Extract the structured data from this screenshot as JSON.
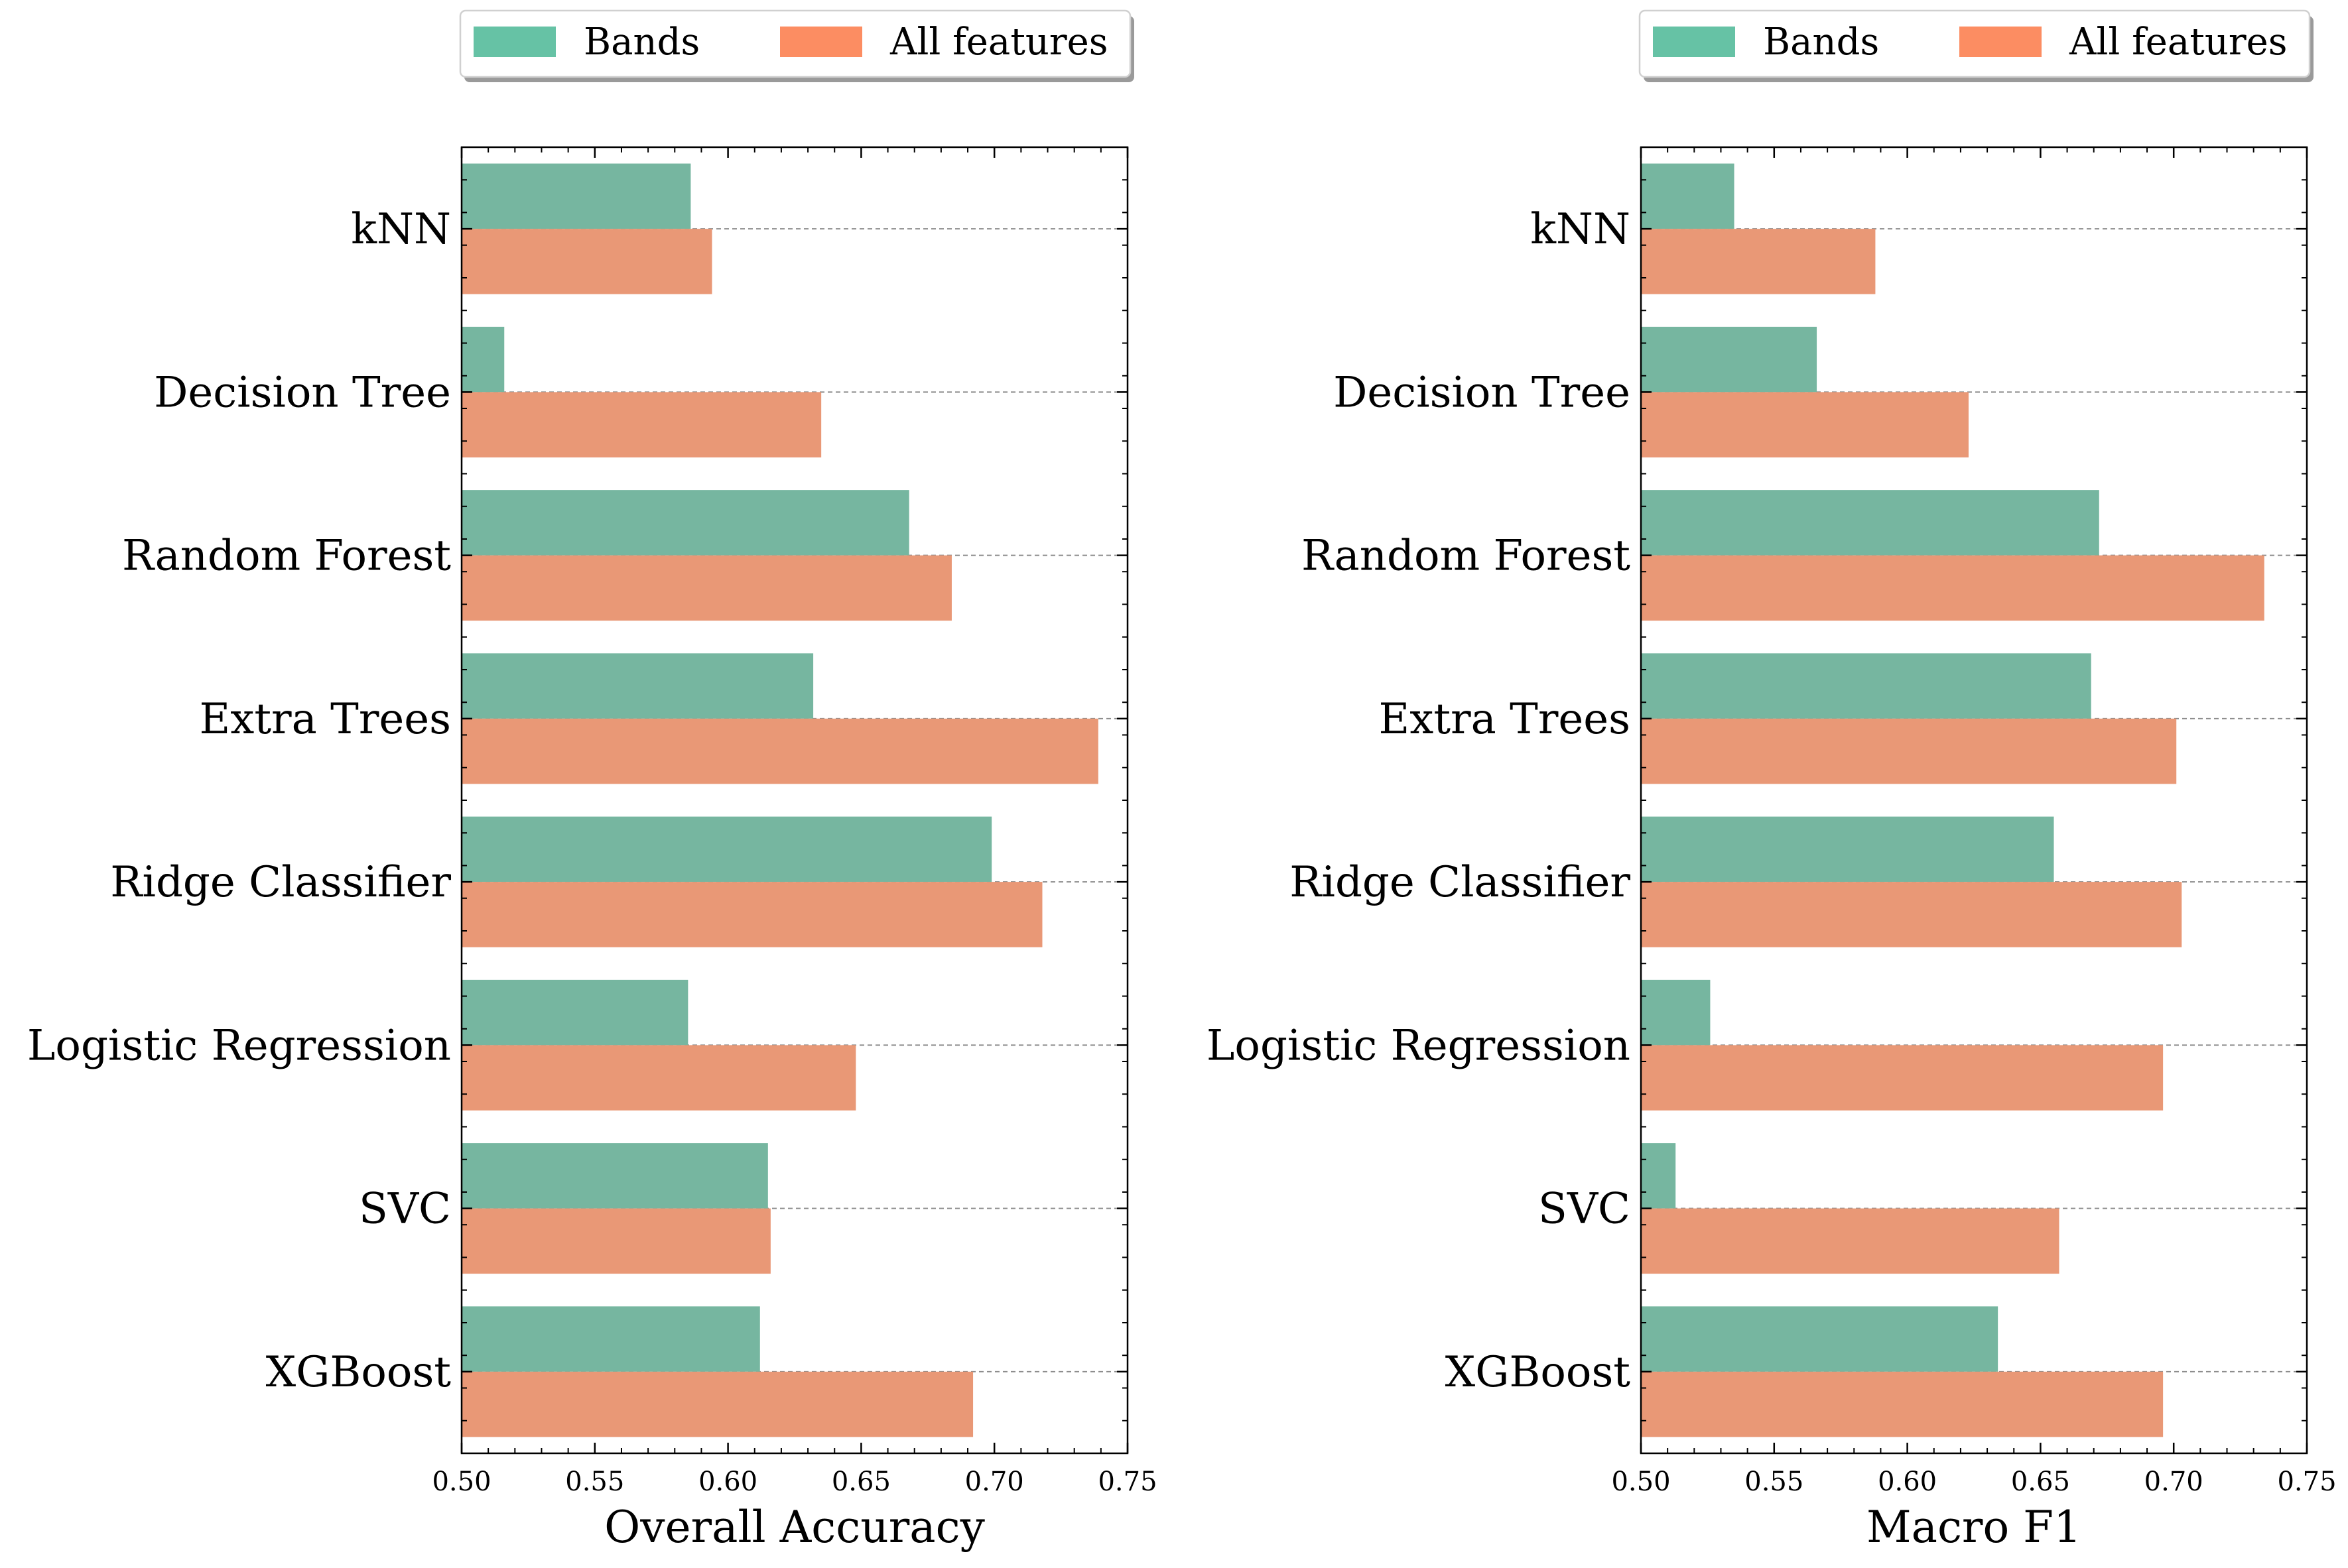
{
  "chart_data": [
    {
      "type": "bar",
      "orientation": "horizontal",
      "categories": [
        "kNN",
        "Decision Tree",
        "Random Forest",
        "Extra Trees",
        "Ridge Classifier",
        "Logistic Regression",
        "SVC",
        "XGBoost"
      ],
      "series": [
        {
          "name": "Bands",
          "color": "#66c2a5",
          "values": [
            0.586,
            0.516,
            0.668,
            0.632,
            0.699,
            0.585,
            0.615,
            0.612
          ]
        },
        {
          "name": "All features",
          "color": "#fc8d62",
          "values": [
            0.594,
            0.635,
            0.684,
            0.739,
            0.718,
            0.648,
            0.616,
            0.692
          ]
        }
      ],
      "xlabel": "Overall Accuracy",
      "xlim": [
        0.5,
        0.75
      ],
      "xticks": [
        "0.50",
        "0.55",
        "0.60",
        "0.65",
        "0.70",
        "0.75"
      ],
      "grid": "horizontal dashed at category centers",
      "legend": "top, outside, 2 columns"
    },
    {
      "type": "bar",
      "orientation": "horizontal",
      "categories": [
        "kNN",
        "Decision Tree",
        "Random Forest",
        "Extra Trees",
        "Ridge Classifier",
        "Logistic Regression",
        "SVC",
        "XGBoost"
      ],
      "series": [
        {
          "name": "Bands",
          "color": "#66c2a5",
          "values": [
            0.535,
            0.566,
            0.672,
            0.669,
            0.655,
            0.526,
            0.513,
            0.634
          ]
        },
        {
          "name": "All features",
          "color": "#fc8d62",
          "values": [
            0.588,
            0.623,
            0.734,
            0.701,
            0.703,
            0.696,
            0.657,
            0.696
          ]
        }
      ],
      "xlabel": "Macro F1",
      "xlim": [
        0.5,
        0.75
      ],
      "xticks": [
        "0.50",
        "0.55",
        "0.60",
        "0.65",
        "0.70",
        "0.75"
      ],
      "grid": "horizontal dashed at category centers",
      "legend": "top, outside, 2 columns"
    }
  ],
  "colors": {
    "bands": "#66c2a5",
    "all_features": "#fc8d62",
    "bands_bar": "#76b6a0",
    "all_features_bar": "#e99876"
  }
}
